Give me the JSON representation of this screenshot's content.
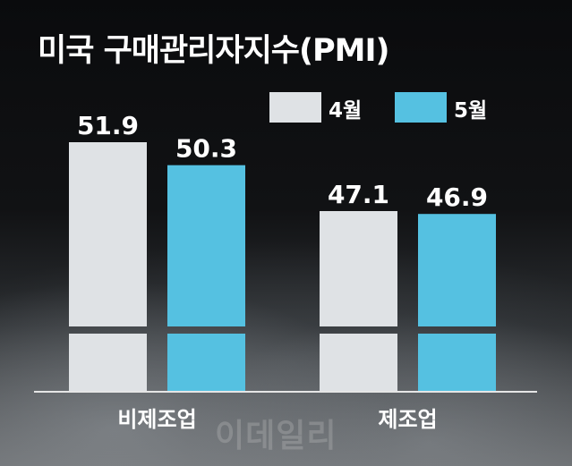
{
  "title": "미국 구매관리자지수(PMI)",
  "watermark": "이데일리",
  "colors": {
    "april": "#dfe2e5",
    "may": "#55c1e1",
    "text": "#ffffff",
    "axis": "#e6e6e6"
  },
  "legend": [
    {
      "label": "4월",
      "color": "#dfe2e5"
    },
    {
      "label": "5월",
      "color": "#55c1e1"
    }
  ],
  "chart_data": {
    "type": "bar",
    "categories": [
      "비제조업",
      "제조업"
    ],
    "series": [
      {
        "name": "4월",
        "values": [
          51.9,
          47.1
        ],
        "labels": [
          "51.9",
          "47.1"
        ]
      },
      {
        "name": "5월",
        "values": [
          50.3,
          46.9
        ],
        "labels": [
          "50.3",
          "46.9"
        ]
      }
    ],
    "axis_break": true,
    "legend_position": "top-right",
    "grid": false
  }
}
